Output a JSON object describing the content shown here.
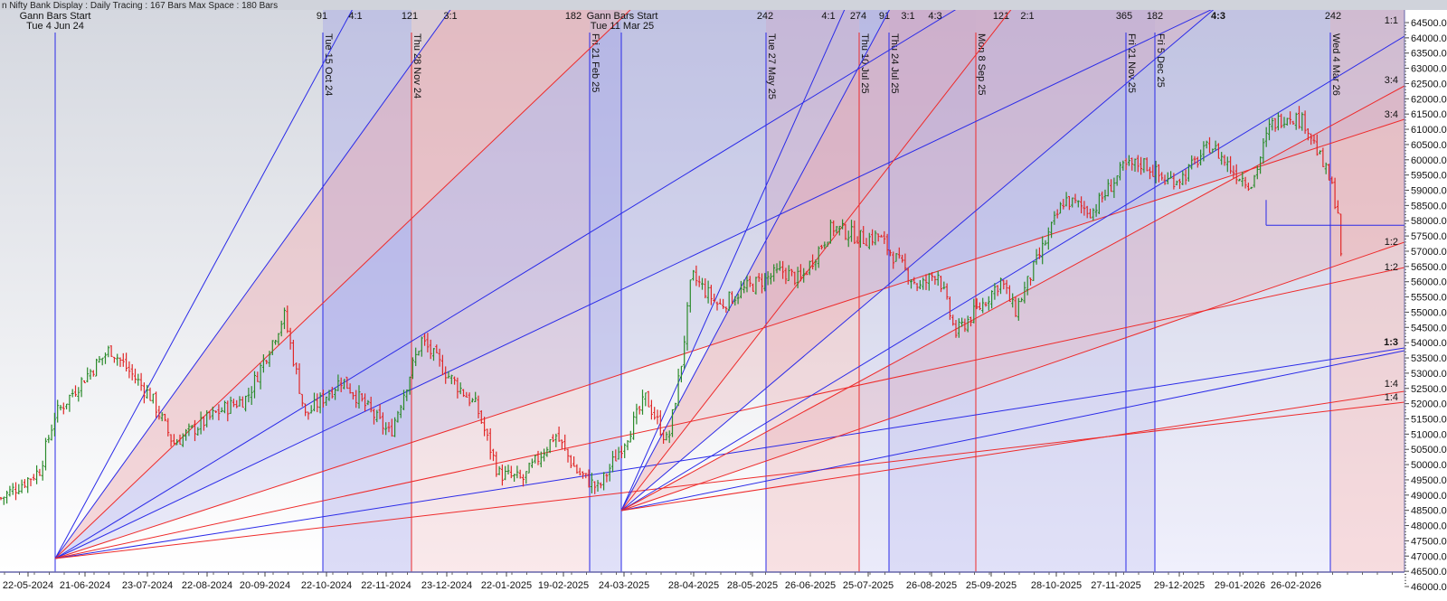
{
  "header": {
    "title": "n Nifty Bank Display : Daily   Tracing : 167 Bars   Max Space : 180 Bars"
  },
  "colors": {
    "up_bar": "#2a8a2a",
    "down_bar": "#e02828",
    "blue_line": "#2a2ae8",
    "red_line": "#ee2a2a",
    "blue_shade": "#9a9ae8",
    "red_shade": "#eaa8b0"
  },
  "gann_starts": [
    {
      "title": "Gann Bars Start",
      "date": "Tue 4 Jun 24"
    },
    {
      "title": "Gann Bars Start",
      "date": "Tue 11 Mar 25"
    }
  ],
  "vertical_markers": [
    {
      "label": "Tue 15 Oct 24",
      "count": "91",
      "color": "blue"
    },
    {
      "label": "Thu 28 Nov 24",
      "count": "121",
      "color": "red"
    },
    {
      "label": "Fri 21 Feb 25",
      "count": "182",
      "color": "blue"
    },
    {
      "label": "Tue 27 May 25",
      "count": "242",
      "color": "blue"
    },
    {
      "label": "Thu 10 Jul 25",
      "count": "274",
      "color": "red"
    },
    {
      "label": "Thu 24 Jul 25",
      "count": "91",
      "color": "blue"
    },
    {
      "label": "Mon 8 Sep 25",
      "count": "121",
      "color": "red"
    },
    {
      "label": "Fri 21 Nov 25",
      "count": "365",
      "color": "blue"
    },
    {
      "label": "Fri 5 Dec 25",
      "count": "182",
      "color": "blue"
    },
    {
      "label": "Wed 4 Mar 26",
      "count": "242",
      "color": "blue"
    }
  ],
  "angle_labels_top": [
    "4:1",
    "3:1",
    "4:1",
    "3:1",
    "4:3",
    "2:1",
    "4:3"
  ],
  "angle_labels_right": [
    "1:1",
    "3:4",
    "3:4",
    "1:2",
    "1:2",
    "1:3",
    "1:4",
    "1:4"
  ],
  "chart_data": {
    "type": "ohlc-bar",
    "symbol_title": "Nifty Bank",
    "xlabel": "",
    "ylabel": "",
    "ylim": [
      46000,
      64500
    ],
    "yticks": [
      "64500.00",
      "64000.00",
      "63500.00",
      "63000.00",
      "62500.00",
      "62000.00",
      "61500.00",
      "61000.00",
      "60500.00",
      "60000.00",
      "59500.00",
      "59000.00",
      "58500.00",
      "58000.00",
      "57500.00",
      "57000.00",
      "56500.00",
      "56000.00",
      "55500.00",
      "55000.00",
      "54500.00",
      "54000.00",
      "53500.00",
      "53000.00",
      "52500.00",
      "52000.00",
      "51500.00",
      "51000.00",
      "50500.00",
      "50000.00",
      "49500.00",
      "49000.00",
      "48500.00",
      "48000.00",
      "47500.00",
      "47000.00",
      "46500.00",
      "46000.00"
    ],
    "xticks": [
      "22-05-2024",
      "21-06-2024",
      "23-07-2024",
      "22-08-2024",
      "20-09-2024",
      "22-10-2024",
      "22-11-2024",
      "23-12-2024",
      "22-01-2025",
      "19-02-2025",
      "24-03-2025",
      "28-04-2025",
      "28-05-2025",
      "26-06-2025",
      "25-07-2025",
      "26-08-2025",
      "25-09-2025",
      "28-10-2025",
      "27-11-2025",
      "29-12-2025",
      "29-01-2026",
      "26-02-2026"
    ],
    "approx_close_path": [
      {
        "date": "2024-05-08",
        "price": 48900
      },
      {
        "date": "2024-05-28",
        "price": 49800
      },
      {
        "date": "2024-06-05",
        "price": 51600
      },
      {
        "date": "2024-06-20",
        "price": 52800
      },
      {
        "date": "2024-07-04",
        "price": 53800
      },
      {
        "date": "2024-07-25",
        "price": 52200
      },
      {
        "date": "2024-08-05",
        "price": 50700
      },
      {
        "date": "2024-08-28",
        "price": 51750
      },
      {
        "date": "2024-09-11",
        "price": 52200
      },
      {
        "date": "2024-09-30",
        "price": 54900
      },
      {
        "date": "2024-10-11",
        "price": 51600
      },
      {
        "date": "2024-10-30",
        "price": 52800
      },
      {
        "date": "2024-11-24",
        "price": 51000
      },
      {
        "date": "2024-12-10",
        "price": 54100
      },
      {
        "date": "2024-12-24",
        "price": 52900
      },
      {
        "date": "2025-01-07",
        "price": 51900
      },
      {
        "date": "2025-01-18",
        "price": 49700
      },
      {
        "date": "2025-01-30",
        "price": 49500
      },
      {
        "date": "2025-02-15",
        "price": 51000
      },
      {
        "date": "2025-02-26",
        "price": 49800
      },
      {
        "date": "2025-03-10",
        "price": 49200
      },
      {
        "date": "2025-03-26",
        "price": 51000
      },
      {
        "date": "2025-04-04",
        "price": 52200
      },
      {
        "date": "2025-04-15",
        "price": 50700
      },
      {
        "date": "2025-04-22",
        "price": 53400
      },
      {
        "date": "2025-04-27",
        "price": 56200
      },
      {
        "date": "2025-05-11",
        "price": 55200
      },
      {
        "date": "2025-05-25",
        "price": 55800
      },
      {
        "date": "2025-06-12",
        "price": 56350
      },
      {
        "date": "2025-06-21",
        "price": 56050
      },
      {
        "date": "2025-07-07",
        "price": 57800
      },
      {
        "date": "2025-07-23",
        "price": 57400
      },
      {
        "date": "2025-07-30",
        "price": 57500
      },
      {
        "date": "2025-08-11",
        "price": 56500
      },
      {
        "date": "2025-08-20",
        "price": 55800
      },
      {
        "date": "2025-08-29",
        "price": 56350
      },
      {
        "date": "2025-09-07",
        "price": 54300
      },
      {
        "date": "2025-09-21",
        "price": 55300
      },
      {
        "date": "2025-09-30",
        "price": 56050
      },
      {
        "date": "2025-10-07",
        "price": 55000
      },
      {
        "date": "2025-10-19",
        "price": 56800
      },
      {
        "date": "2025-11-01",
        "price": 58700
      },
      {
        "date": "2025-11-15",
        "price": 58300
      },
      {
        "date": "2025-12-01",
        "price": 59750
      },
      {
        "date": "2025-12-11",
        "price": 59900
      },
      {
        "date": "2025-12-22",
        "price": 59300
      },
      {
        "date": "2025-12-31",
        "price": 59450
      },
      {
        "date": "2026-01-14",
        "price": 60500
      },
      {
        "date": "2026-01-26",
        "price": 59600
      },
      {
        "date": "2026-02-04",
        "price": 59200
      },
      {
        "date": "2026-02-13",
        "price": 61100
      },
      {
        "date": "2026-02-22",
        "price": 61500
      },
      {
        "date": "2026-03-03",
        "price": 61200
      },
      {
        "date": "2026-03-10",
        "price": 60050
      },
      {
        "date": "2026-03-15",
        "price": 59300
      },
      {
        "date": "2026-03-19",
        "price": 58300
      },
      {
        "date": "2026-03-21",
        "price": 56200
      }
    ],
    "horizontal_level": 57850,
    "grid": false
  }
}
